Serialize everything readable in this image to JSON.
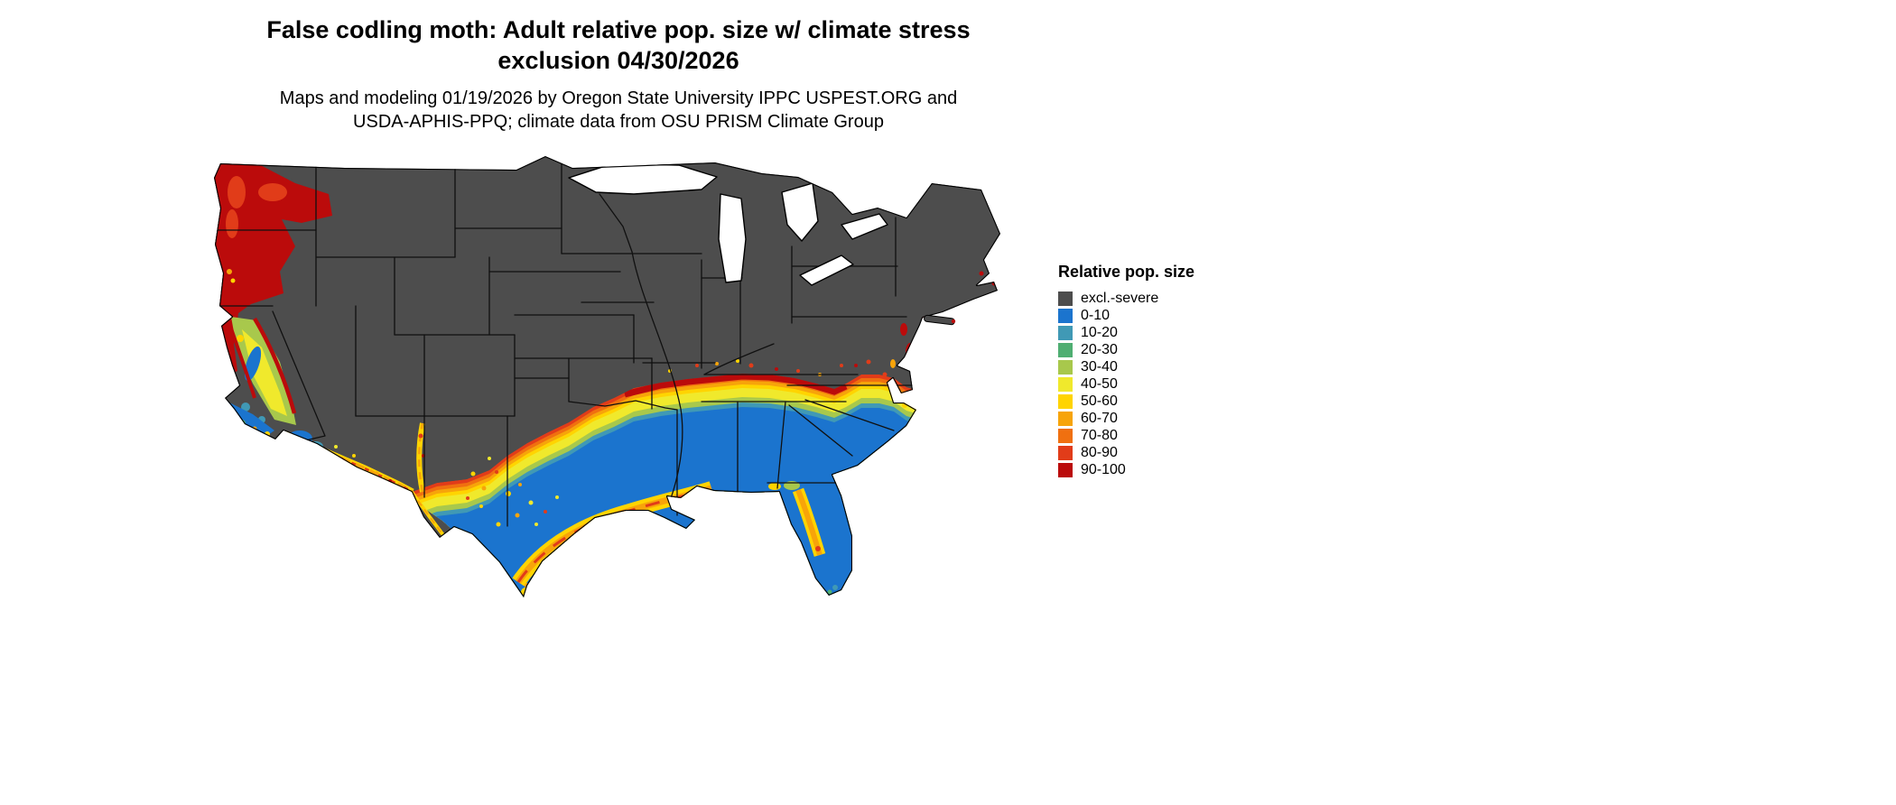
{
  "header": {
    "title_line1": "False codling moth: Adult relative pop. size w/ climate stress",
    "title_line2": "exclusion 04/30/2026",
    "subtitle_line1": "Maps and modeling 01/19/2026 by Oregon State University IPPC USPEST.ORG and",
    "subtitle_line2": "USDA-APHIS-PPQ; climate data from OSU PRISM Climate Group"
  },
  "legend": {
    "title": "Relative pop. size",
    "items": [
      {
        "label": "excl.-severe",
        "color_key": "gray"
      },
      {
        "label": "0-10",
        "color_key": "blue"
      },
      {
        "label": "10-20",
        "color_key": "teal"
      },
      {
        "label": "20-30",
        "color_key": "green"
      },
      {
        "label": "30-40",
        "color_key": "yellowgreen"
      },
      {
        "label": "40-50",
        "color_key": "yellow"
      },
      {
        "label": "50-60",
        "color_key": "gold"
      },
      {
        "label": "60-70",
        "color_key": "orange"
      },
      {
        "label": "70-80",
        "color_key": "darkorange"
      },
      {
        "label": "80-90",
        "color_key": "redorange"
      },
      {
        "label": "90-100",
        "color_key": "darkred"
      }
    ]
  },
  "palette": {
    "gray": "#4D4D4D",
    "blue": "#1B74CE",
    "teal": "#4099B5",
    "green": "#4FAE72",
    "yellowgreen": "#A8C84C",
    "yellow": "#F0E92C",
    "gold": "#FFD400",
    "orange": "#F7A40A",
    "darkorange": "#F07010",
    "redorange": "#E13C19",
    "darkred": "#BB0B0B"
  }
}
